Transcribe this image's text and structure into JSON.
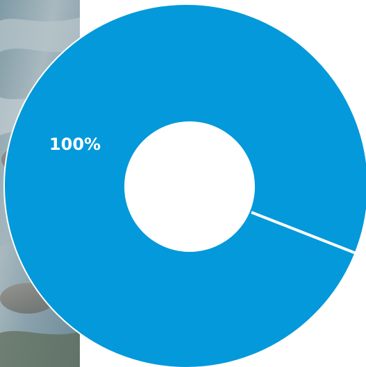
{
  "chart_data": {
    "type": "pie",
    "variant": "donut",
    "slices": [
      {
        "value": 100,
        "label": "100%",
        "color": "#0399DA"
      }
    ],
    "separator_color": "#ffffff",
    "hole_color": "#ffffff"
  }
}
